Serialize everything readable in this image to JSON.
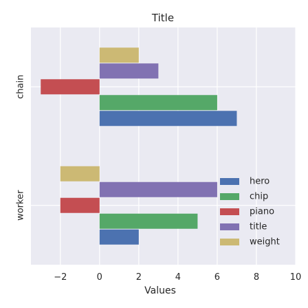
{
  "chart_data": {
    "type": "bar",
    "orientation": "horizontal",
    "title": "Title",
    "xlabel": "Values",
    "ylabel": "",
    "categories": [
      "chain",
      "worker"
    ],
    "series": [
      {
        "name": "hero",
        "color": "#4c72b0",
        "values": [
          7,
          2
        ]
      },
      {
        "name": "chip",
        "color": "#55a868",
        "values": [
          6,
          5
        ]
      },
      {
        "name": "piano",
        "color": "#c44e52",
        "values": [
          -3,
          -2
        ]
      },
      {
        "name": "title",
        "color": "#8172b2",
        "values": [
          3,
          6
        ]
      },
      {
        "name": "weight",
        "color": "#ccb974",
        "values": [
          2,
          -2
        ]
      }
    ],
    "xlim": [
      -3.5,
      10
    ],
    "xticks": [
      -2,
      0,
      2,
      4,
      6,
      8,
      10
    ],
    "xtick_labels": [
      "−2",
      "0",
      "2",
      "4",
      "6",
      "8",
      "10"
    ],
    "grid": true,
    "legend_position": "lower-right",
    "background_color": "#eaeaf2"
  }
}
